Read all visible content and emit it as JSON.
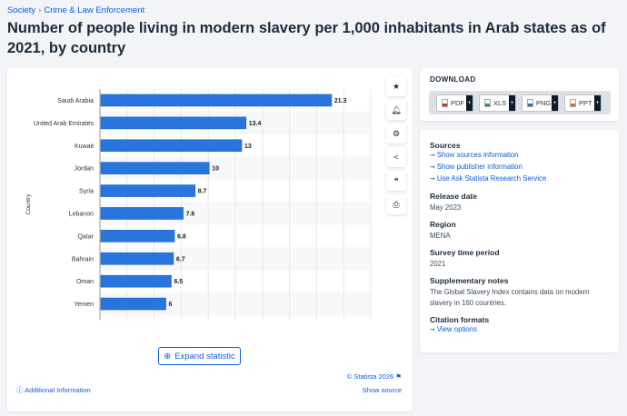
{
  "breadcrumb": [
    "Society",
    "Crime & Law Enforcement"
  ],
  "title": "Number of people living in modern slavery per 1,000 inhabitants in Arab states as of 2021, by country",
  "chart_data": {
    "type": "bar",
    "orientation": "horizontal",
    "categories": [
      "Saudi Arabia",
      "United Arab Emirates",
      "Kuwait",
      "Jordan",
      "Syria",
      "Lebanon",
      "Qatar",
      "Bahrain",
      "Oman",
      "Yemen"
    ],
    "values": [
      21.3,
      13.4,
      13,
      10,
      8.7,
      7.6,
      6.8,
      6.7,
      6.5,
      6
    ],
    "ylabel": "Country",
    "xlim": [
      0,
      25
    ],
    "grid": true,
    "bar_color": "#2876dd"
  },
  "toolbar": {
    "icons": [
      "star-icon",
      "bell-icon",
      "gear-icon",
      "share-icon",
      "quote-icon",
      "print-icon"
    ]
  },
  "expand_label": "Expand statistic",
  "copyright": "© Statista 2026",
  "additional_info": "Additional Information",
  "show_source": "Show source",
  "download": {
    "heading": "DOWNLOAD",
    "formats": [
      "PDF",
      "XLS",
      "PNG",
      "PPT"
    ],
    "colors": [
      "#d9302c",
      "#3a9b3a",
      "#3a6fc0",
      "#e06a1b"
    ]
  },
  "info": {
    "sources_heading": "Sources",
    "source_links": [
      "Show sources information",
      "Show publisher information",
      "Use Ask Statista Research Service"
    ],
    "release_heading": "Release date",
    "release": "May 2023",
    "region_heading": "Region",
    "region": "MENA",
    "survey_heading": "Survey time period",
    "survey": "2021",
    "notes_heading": "Supplementary notes",
    "notes": "The Global Slavery Index contains data on modern slavery in 160 countries.",
    "citation_heading": "Citation formats",
    "citation_link": "View options"
  }
}
